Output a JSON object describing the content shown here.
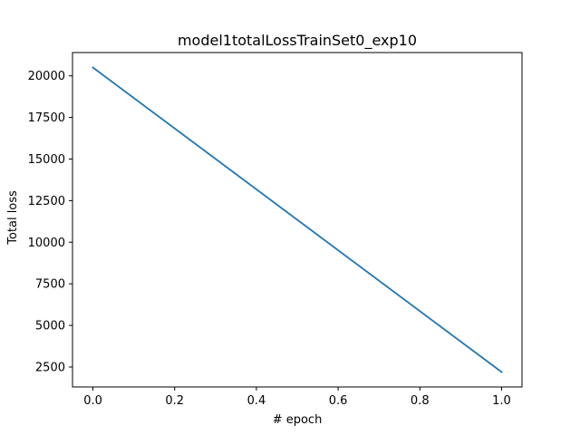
{
  "chart_data": {
    "type": "line",
    "title": "model1totalLossTrainSet0_exp10",
    "xlabel": "# epoch",
    "ylabel": "Total loss",
    "xlim": [
      -0.05,
      1.05
    ],
    "ylim": [
      1300,
      21400
    ],
    "xticks": [
      0.0,
      0.2,
      0.4,
      0.6,
      0.8,
      1.0
    ],
    "xtick_labels": [
      "0.0",
      "0.2",
      "0.4",
      "0.6",
      "0.8",
      "1.0"
    ],
    "yticks": [
      2500,
      5000,
      7500,
      10000,
      12500,
      15000,
      17500,
      20000
    ],
    "ytick_labels": [
      "2500",
      "5000",
      "7500",
      "10000",
      "12500",
      "15000",
      "17500",
      "20000"
    ],
    "grid": false,
    "series": [
      {
        "color": "#1f77b4",
        "x": [
          0.0,
          1.0
        ],
        "y": [
          20500,
          2200
        ]
      }
    ]
  }
}
